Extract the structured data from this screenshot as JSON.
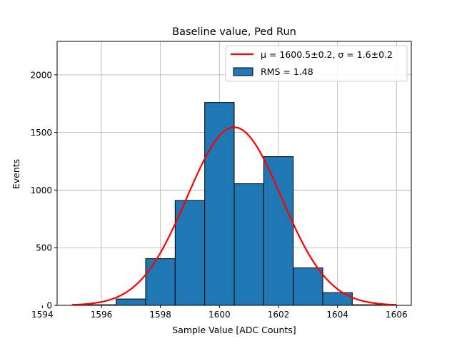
{
  "chart_data": {
    "type": "bar",
    "title": "Baseline value, Ped Run",
    "xlabel": "Sample Value [ADC Counts]",
    "ylabel": "Events",
    "xlim": [
      1594.5,
      1606.5
    ],
    "ylim": [
      0,
      2290
    ],
    "grid": true,
    "legend_position": "upper right",
    "x_ticks": [
      1594,
      1596,
      1598,
      1600,
      1602,
      1604,
      1606
    ],
    "x_tick_labels": [
      "1594",
      "1596",
      "1598",
      "1600",
      "1602",
      "1604",
      "1606"
    ],
    "y_ticks": [
      0,
      500,
      1000,
      1500,
      2000
    ],
    "y_tick_labels": [
      "0",
      "500",
      "1000",
      "1500",
      "2000"
    ],
    "histogram": {
      "label": "RMS = 1.48",
      "color": "#1f77b4",
      "edgecolor": "#000000",
      "bins": [
        {
          "left": 1595.5,
          "right": 1596.5,
          "count": 5
        },
        {
          "left": 1596.5,
          "right": 1597.5,
          "count": 55
        },
        {
          "left": 1597.5,
          "right": 1598.5,
          "count": 405
        },
        {
          "left": 1598.5,
          "right": 1599.5,
          "count": 910
        },
        {
          "left": 1599.5,
          "right": 1600.5,
          "count": 1760
        },
        {
          "left": 1600.5,
          "right": 1601.5,
          "count": 1055
        },
        {
          "left": 1601.5,
          "right": 1602.5,
          "count": 1290
        },
        {
          "left": 1602.5,
          "right": 1603.5,
          "count": 325
        },
        {
          "left": 1603.5,
          "right": 1604.5,
          "count": 110
        },
        {
          "left": 1604.5,
          "right": 1605.5,
          "count": 5
        }
      ]
    },
    "fit": {
      "label_prefix": "μ = 1600.5±0.2, σ = 1.6±0.2",
      "color": "#ff0000",
      "mu": 1600.5,
      "sigma": 1.6,
      "amplitude": 1545,
      "x_range": [
        1595,
        1606
      ]
    }
  }
}
